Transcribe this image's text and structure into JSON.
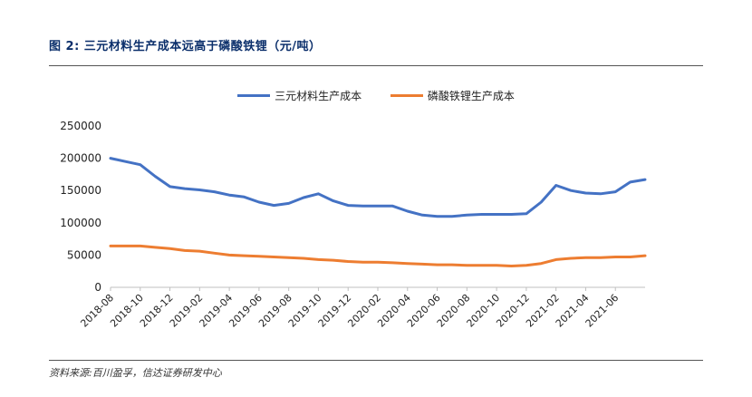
{
  "figure": {
    "title": "图 2:  三元材料生产成本远高于磷酸铁锂（元/吨）",
    "source": "资料来源:百川盈孚，信达证券研发中心"
  },
  "chart_data": {
    "type": "line",
    "title": "",
    "xlabel": "",
    "ylabel": "",
    "ylim": [
      0,
      250000
    ],
    "yticks": [
      "250000",
      "200000",
      "150000",
      "100000",
      "50000",
      "0"
    ],
    "xticks": [
      "2018-08",
      "2018-10",
      "2018-12",
      "2019-02",
      "2019-04",
      "2019-06",
      "2019-08",
      "2019-10",
      "2019-12",
      "2020-02",
      "2020-04",
      "2020-06",
      "2020-08",
      "2020-10",
      "2020-12",
      "2021-02",
      "2021-04",
      "2021-06"
    ],
    "grid": false,
    "legend_position": "top",
    "series": [
      {
        "name": "三元材料生产成本",
        "color": "#4472c4",
        "points": [
          [
            "2018-08",
            200000
          ],
          [
            "2018-09",
            195000
          ],
          [
            "2018-10",
            190000
          ],
          [
            "2018-11",
            172000
          ],
          [
            "2018-12",
            156000
          ],
          [
            "2019-01",
            153000
          ],
          [
            "2019-02",
            151000
          ],
          [
            "2019-03",
            148000
          ],
          [
            "2019-04",
            143000
          ],
          [
            "2019-05",
            140000
          ],
          [
            "2019-06",
            132000
          ],
          [
            "2019-07",
            127000
          ],
          [
            "2019-08",
            130000
          ],
          [
            "2019-09",
            139000
          ],
          [
            "2019-10",
            145000
          ],
          [
            "2019-11",
            134000
          ],
          [
            "2019-12",
            127000
          ],
          [
            "2020-01",
            126000
          ],
          [
            "2020-02",
            126000
          ],
          [
            "2020-03",
            126000
          ],
          [
            "2020-04",
            118000
          ],
          [
            "2020-05",
            112000
          ],
          [
            "2020-06",
            110000
          ],
          [
            "2020-07",
            110000
          ],
          [
            "2020-08",
            112000
          ],
          [
            "2020-09",
            113000
          ],
          [
            "2020-10",
            113000
          ],
          [
            "2020-11",
            113000
          ],
          [
            "2020-12",
            114000
          ],
          [
            "2021-01",
            132000
          ],
          [
            "2021-02",
            158000
          ],
          [
            "2021-03",
            150000
          ],
          [
            "2021-04",
            146000
          ],
          [
            "2021-05",
            145000
          ],
          [
            "2021-06",
            148000
          ],
          [
            "2021-07",
            163000
          ],
          [
            "2021-08",
            167000
          ]
        ]
      },
      {
        "name": "磷酸铁锂生产成本",
        "color": "#ed7d31",
        "points": [
          [
            "2018-08",
            64000
          ],
          [
            "2018-09",
            64000
          ],
          [
            "2018-10",
            64000
          ],
          [
            "2018-11",
            62000
          ],
          [
            "2018-12",
            60000
          ],
          [
            "2019-01",
            57000
          ],
          [
            "2019-02",
            56000
          ],
          [
            "2019-03",
            53000
          ],
          [
            "2019-04",
            50000
          ],
          [
            "2019-05",
            49000
          ],
          [
            "2019-06",
            48000
          ],
          [
            "2019-07",
            47000
          ],
          [
            "2019-08",
            46000
          ],
          [
            "2019-09",
            45000
          ],
          [
            "2019-10",
            43000
          ],
          [
            "2019-11",
            42000
          ],
          [
            "2019-12",
            40000
          ],
          [
            "2020-01",
            39000
          ],
          [
            "2020-02",
            39000
          ],
          [
            "2020-03",
            38000
          ],
          [
            "2020-04",
            37000
          ],
          [
            "2020-05",
            36000
          ],
          [
            "2020-06",
            35000
          ],
          [
            "2020-07",
            35000
          ],
          [
            "2020-08",
            34000
          ],
          [
            "2020-09",
            34000
          ],
          [
            "2020-10",
            34000
          ],
          [
            "2020-11",
            33000
          ],
          [
            "2020-12",
            34000
          ],
          [
            "2021-01",
            37000
          ],
          [
            "2021-02",
            43000
          ],
          [
            "2021-03",
            45000
          ],
          [
            "2021-04",
            46000
          ],
          [
            "2021-05",
            46000
          ],
          [
            "2021-06",
            47000
          ],
          [
            "2021-07",
            47000
          ],
          [
            "2021-08",
            49000
          ]
        ]
      }
    ]
  }
}
